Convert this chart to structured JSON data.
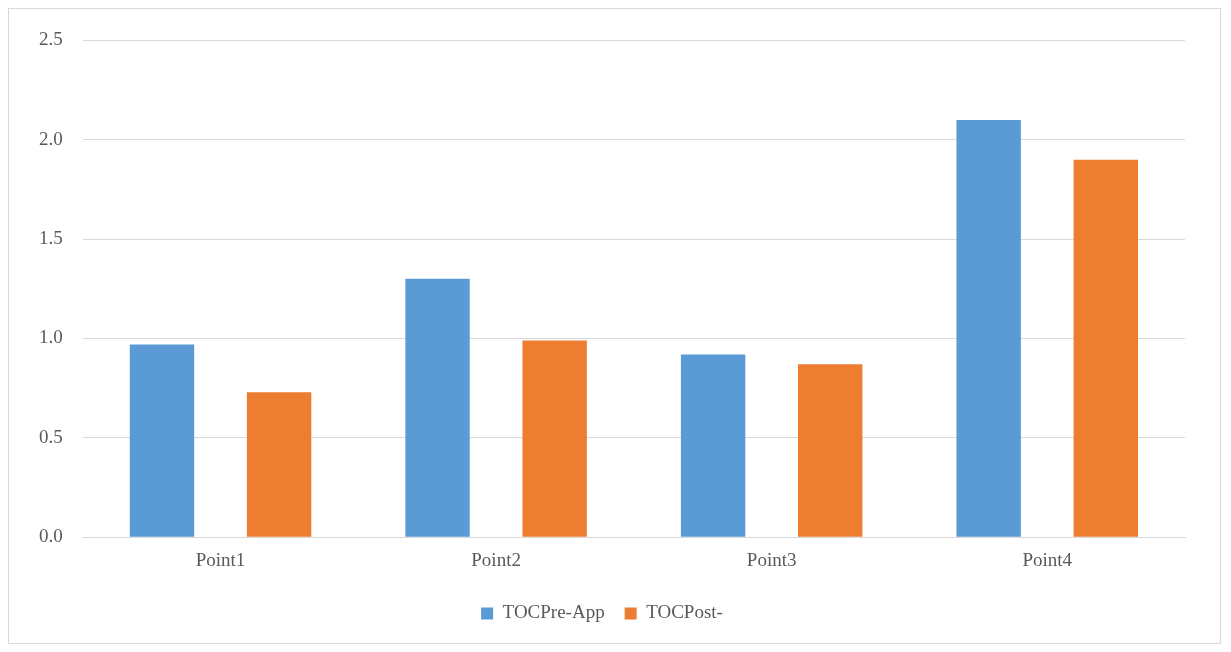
{
  "chart_data": {
    "type": "bar",
    "categories": [
      "Point1",
      "Point2",
      "Point3",
      "Point4"
    ],
    "series": [
      {
        "name": "TOCPre-App",
        "color": "#5b9bd5",
        "values": [
          0.97,
          1.3,
          0.92,
          2.1
        ]
      },
      {
        "name": "TOCPost-",
        "color": "#ed7d31",
        "values": [
          0.73,
          0.99,
          0.87,
          1.9
        ]
      }
    ],
    "ylim": [
      0,
      2.5
    ],
    "yticks": [
      {
        "value": 0,
        "label": "0.0"
      },
      {
        "value": 0.5,
        "label": "0.5"
      },
      {
        "value": 1,
        "label": "1.0"
      },
      {
        "value": 1.5,
        "label": "1.5"
      },
      {
        "value": 2,
        "label": "2.0"
      },
      {
        "value": 2.5,
        "label": "2.5"
      }
    ],
    "grid": "y",
    "legend": "bottom"
  }
}
